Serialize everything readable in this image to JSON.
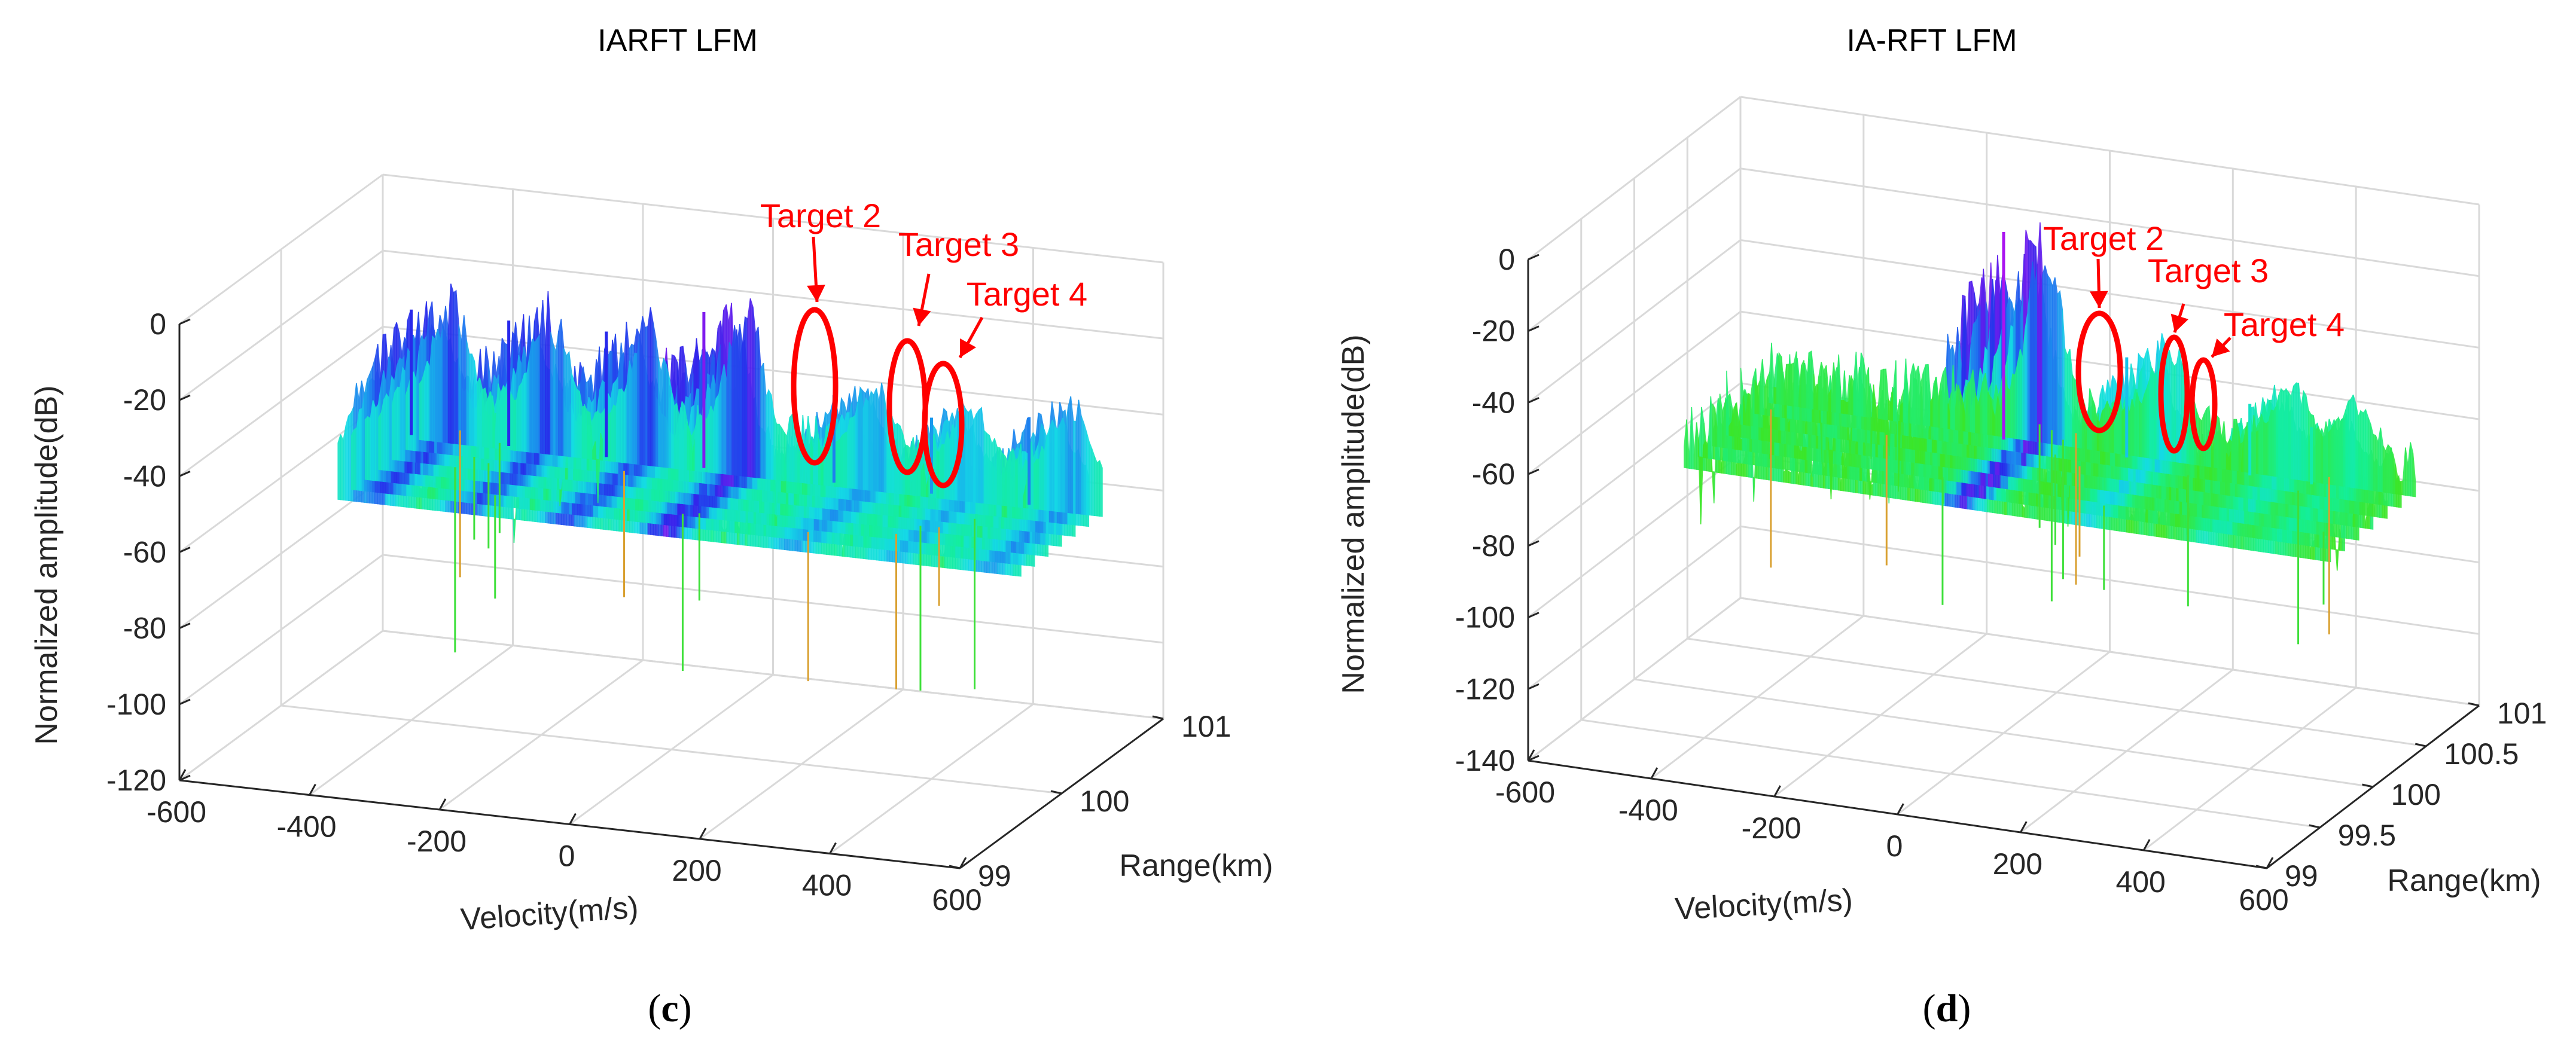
{
  "chart_data": [
    {
      "panel": "c",
      "type": "surface3d",
      "title": "IARFT LFM",
      "xlabel": "Velocity(m/s)",
      "ylabel": "Range(km)",
      "zlabel": "Normalized amplitude(dB)",
      "xlim": [
        -600,
        600
      ],
      "ylim": [
        99,
        101
      ],
      "zlim": [
        -120,
        0
      ],
      "xticks": [
        "-600",
        "-400",
        "-200",
        "0",
        "200",
        "400",
        "600"
      ],
      "yticks": [
        "99",
        "100",
        "101"
      ],
      "zticks": [
        "-120",
        "-100",
        "-80",
        "-60",
        "-40",
        "-20",
        "0"
      ],
      "floor_db": -45,
      "peaks": [
        {
          "velocity": -400,
          "amplitude": -12
        },
        {
          "velocity": -250,
          "amplitude": -12
        },
        {
          "velocity": -100,
          "amplitude": -12
        },
        {
          "velocity": 50,
          "amplitude": -4
        },
        {
          "velocity": 250,
          "amplitude": -22
        },
        {
          "velocity": 400,
          "amplitude": -25
        },
        {
          "velocity": 550,
          "amplitude": -22
        }
      ],
      "annotations": [
        {
          "text": "Target 2",
          "velocity": 230
        },
        {
          "text": "Target 3",
          "velocity": 370
        },
        {
          "text": "Target 4",
          "velocity": 420
        }
      ],
      "caption": "c"
    },
    {
      "panel": "d",
      "type": "surface3d",
      "title": "IA-RFT LFM",
      "xlabel": "Velocity(m/s)",
      "ylabel": "Range(km)",
      "zlabel": "Normalized amplitude(dB)",
      "xlim": [
        -600,
        600
      ],
      "ylim": [
        99,
        101
      ],
      "zlim": [
        -140,
        0
      ],
      "xticks": [
        "-600",
        "-400",
        "-200",
        "0",
        "200",
        "400",
        "600"
      ],
      "yticks": [
        "99",
        "99.5",
        "100",
        "100.5",
        "101"
      ],
      "zticks": [
        "-140",
        "-120",
        "-100",
        "-80",
        "-60",
        "-40",
        "-20",
        "0"
      ],
      "floor_db": -58,
      "peaks": [
        {
          "velocity": 0,
          "amplitude": 0
        },
        {
          "velocity": 200,
          "amplitude": -30
        },
        {
          "velocity": 400,
          "amplitude": -38
        },
        {
          "velocity": 500,
          "amplitude": -42
        }
      ],
      "annotations": [
        {
          "text": "Target 2",
          "velocity": 200
        },
        {
          "text": "Target 3",
          "velocity": 400
        },
        {
          "text": "Target 4",
          "velocity": 500
        }
      ],
      "caption": "d"
    }
  ]
}
